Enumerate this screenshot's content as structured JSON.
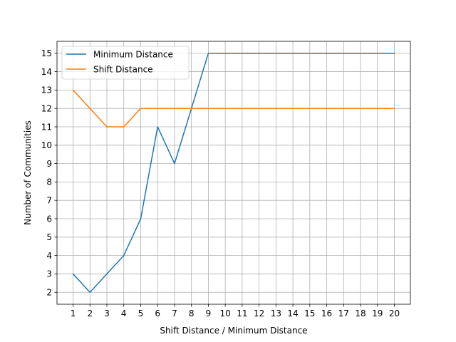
{
  "chart_data": {
    "type": "line",
    "title": "",
    "xlabel": "Shift Distance / Minimum Distance",
    "ylabel": "Number of Communities",
    "x": [
      1,
      2,
      3,
      4,
      5,
      6,
      7,
      8,
      9,
      10,
      11,
      12,
      13,
      14,
      15,
      16,
      17,
      18,
      19,
      20
    ],
    "xticks": [
      1,
      2,
      3,
      4,
      5,
      6,
      7,
      8,
      9,
      10,
      11,
      12,
      13,
      14,
      15,
      16,
      17,
      18,
      19,
      20
    ],
    "yticks": [
      2,
      3,
      4,
      5,
      6,
      7,
      8,
      9,
      10,
      11,
      12,
      13,
      14,
      15
    ],
    "xlim": [
      0.05,
      20.95
    ],
    "ylim": [
      1.35,
      15.65
    ],
    "grid": true,
    "legend_position": "upper-left",
    "series": [
      {
        "name": "Minimum Distance",
        "color": "#1f77b4",
        "values": [
          3,
          2,
          3,
          4,
          6,
          11,
          9,
          12,
          15,
          15,
          15,
          15,
          15,
          15,
          15,
          15,
          15,
          15,
          15,
          15
        ]
      },
      {
        "name": "Shift Distance",
        "color": "#ff7f0e",
        "values": [
          13,
          12,
          11,
          11,
          12,
          12,
          12,
          12,
          12,
          12,
          12,
          12,
          12,
          12,
          12,
          12,
          12,
          12,
          12,
          12
        ]
      }
    ]
  }
}
